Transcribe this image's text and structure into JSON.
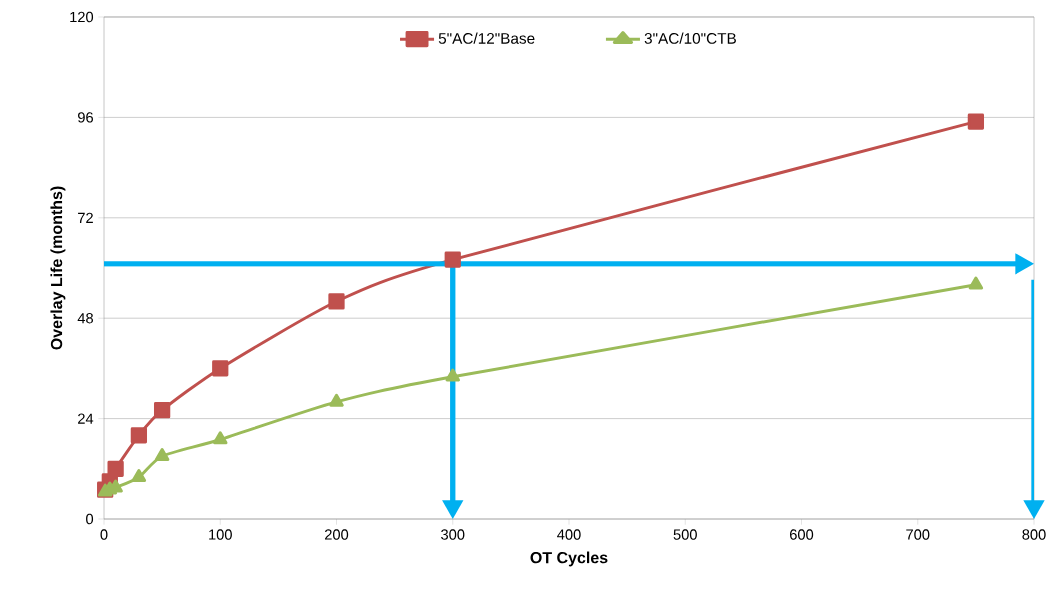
{
  "chart_data": {
    "type": "line",
    "xlabel": "OT Cycles",
    "ylabel": "Overlay Life (months)",
    "xlim": [
      0,
      800
    ],
    "xticks": [
      0,
      100,
      200,
      300,
      400,
      500,
      600,
      700,
      800
    ],
    "ylim": [
      0,
      120
    ],
    "yticks": [
      0,
      24,
      48,
      72,
      96,
      120
    ],
    "grid": "y",
    "legend": "top",
    "series": [
      {
        "name": "5\"AC/12\"Base",
        "color": "#c0504d",
        "marker": "square",
        "x": [
          1,
          5,
          10,
          30,
          50,
          100,
          200,
          300,
          750
        ],
        "values": [
          7,
          9,
          12,
          20,
          26,
          36,
          52,
          62,
          95
        ]
      },
      {
        "name": "3\"AC/10\"CTB",
        "color": "#9bbb59",
        "marker": "triangle",
        "x": [
          1,
          5,
          10,
          30,
          50,
          100,
          200,
          300,
          750
        ],
        "values": [
          6.5,
          7,
          7.5,
          10,
          15,
          19,
          28,
          34,
          56
        ]
      }
    ],
    "ref_lines": [
      {
        "axis": "y",
        "value": 61,
        "color": "#00b0f0"
      },
      {
        "axis": "x",
        "value": 300,
        "color": "#00b0f0"
      },
      {
        "axis": "x",
        "value": 800,
        "color": "#00b0f0"
      }
    ]
  }
}
